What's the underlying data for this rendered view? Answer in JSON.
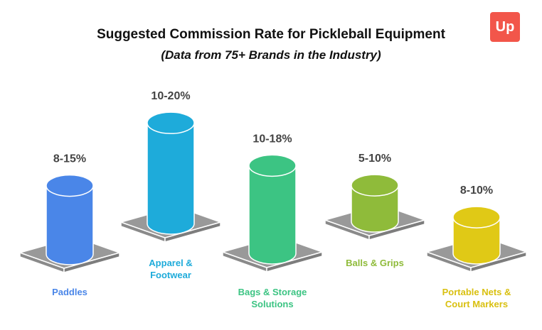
{
  "chart_data": {
    "type": "bar",
    "title": "Suggested Commission Rate for Pickleball Equipment",
    "subtitle": "(Data from 75+ Brands in the Industry)",
    "categories": [
      "Paddles",
      "Apparel & Footwear",
      "Bags & Storage Solutions",
      "Balls & Grips",
      "Portable Nets & Court Markers"
    ],
    "category_lines": [
      [
        "Paddles"
      ],
      [
        "Apparel &",
        "Footwear"
      ],
      [
        "Bags & Storage",
        "Solutions"
      ],
      [
        "Balls & Grips"
      ],
      [
        "Portable Nets &",
        "Court Markers"
      ]
    ],
    "value_labels": [
      "8-15%",
      "10-20%",
      "10-18%",
      "5-10%",
      "8-10%"
    ],
    "ranges": [
      [
        8,
        15
      ],
      [
        10,
        20
      ],
      [
        10,
        18
      ],
      [
        5,
        10
      ],
      [
        8,
        10
      ]
    ],
    "colors": [
      "#4A86E8",
      "#1EABDA",
      "#3CC483",
      "#8FBB3A",
      "#E0C916"
    ],
    "label_colors": [
      "#4A86E8",
      "#1EABDA",
      "#3CC483",
      "#8FBB3A",
      "#D9C010"
    ]
  },
  "logo": {
    "text": "Up",
    "color": "#F2564A"
  }
}
